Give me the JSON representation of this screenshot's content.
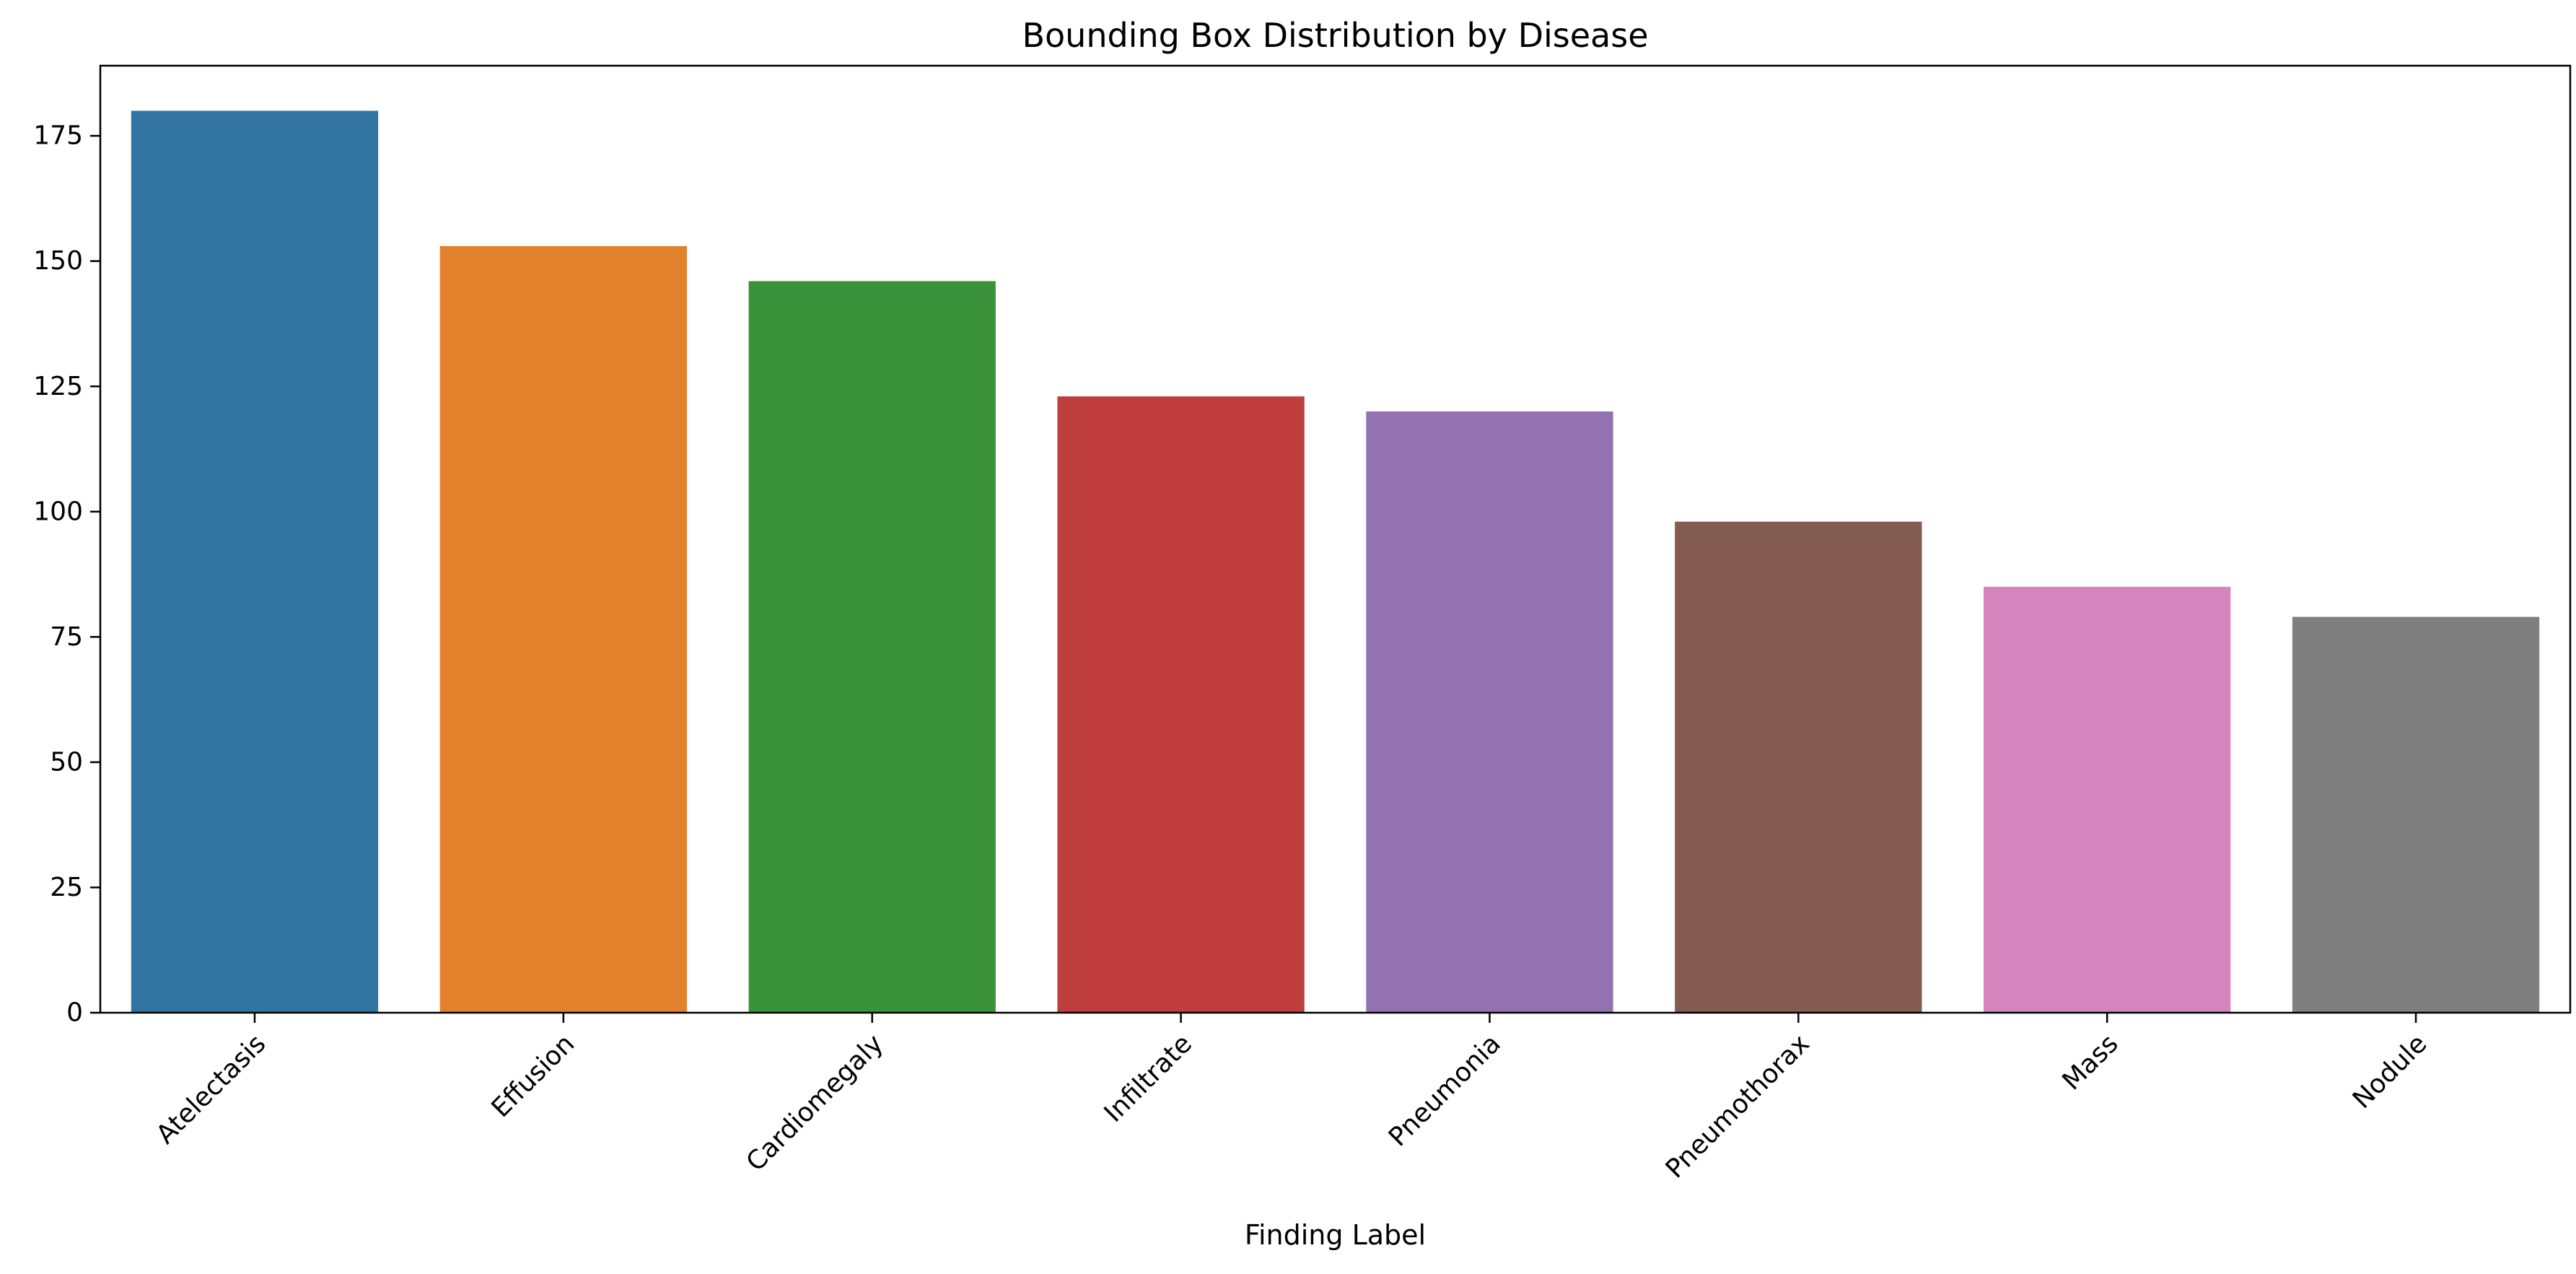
{
  "chart_data": {
    "type": "bar",
    "title": "Bounding Box Distribution by Disease",
    "xlabel": "Finding Label",
    "ylabel": "",
    "categories": [
      "Atelectasis",
      "Effusion",
      "Cardiomegaly",
      "Infiltrate",
      "Pneumonia",
      "Pneumothorax",
      "Mass",
      "Nodule"
    ],
    "values": [
      180,
      153,
      146,
      123,
      120,
      98,
      85,
      79
    ],
    "colors": [
      "#3274a1",
      "#e1812c",
      "#3a923a",
      "#c03d3e",
      "#9372b2",
      "#845b53",
      "#d684bd",
      "#7f7f7f"
    ],
    "ylim": [
      0,
      189
    ],
    "yticks": [
      0,
      25,
      50,
      75,
      100,
      125,
      150,
      175
    ],
    "grid": false,
    "legend": "none"
  }
}
